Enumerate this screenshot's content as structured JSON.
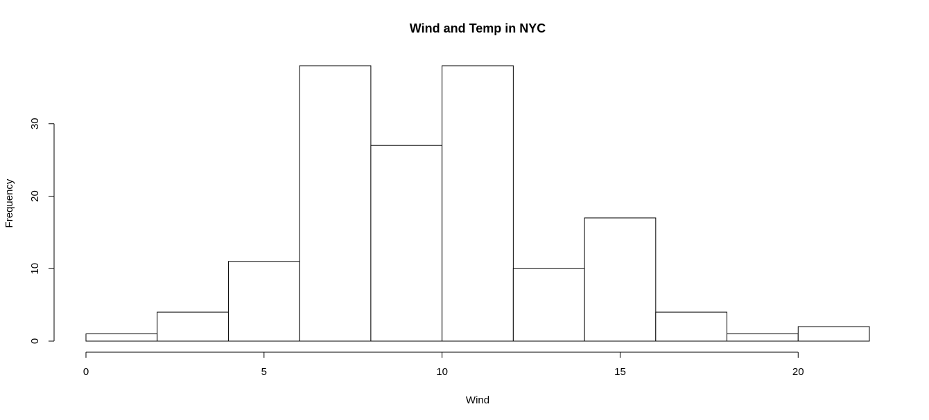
{
  "chart_data": {
    "type": "bar",
    "title": "Wind and Temp in NYC",
    "xlabel": "Wind",
    "ylabel": "Frequency",
    "bins": [
      {
        "from": 0,
        "to": 2,
        "count": 1
      },
      {
        "from": 2,
        "to": 4,
        "count": 4
      },
      {
        "from": 4,
        "to": 6,
        "count": 11
      },
      {
        "from": 6,
        "to": 8,
        "count": 38
      },
      {
        "from": 8,
        "to": 10,
        "count": 27
      },
      {
        "from": 10,
        "to": 12,
        "count": 38
      },
      {
        "from": 12,
        "to": 14,
        "count": 10
      },
      {
        "from": 14,
        "to": 16,
        "count": 17
      },
      {
        "from": 16,
        "to": 18,
        "count": 4
      },
      {
        "from": 18,
        "to": 20,
        "count": 1
      },
      {
        "from": 20,
        "to": 22,
        "count": 2
      }
    ],
    "x_ticks": [
      "0",
      "5",
      "10",
      "15",
      "20"
    ],
    "y_ticks": [
      "0",
      "10",
      "20",
      "30"
    ],
    "xlim": [
      0,
      22
    ],
    "ylim": [
      0,
      38
    ],
    "grid": false,
    "bar_fill": "#ffffff",
    "bar_stroke": "#000000"
  }
}
